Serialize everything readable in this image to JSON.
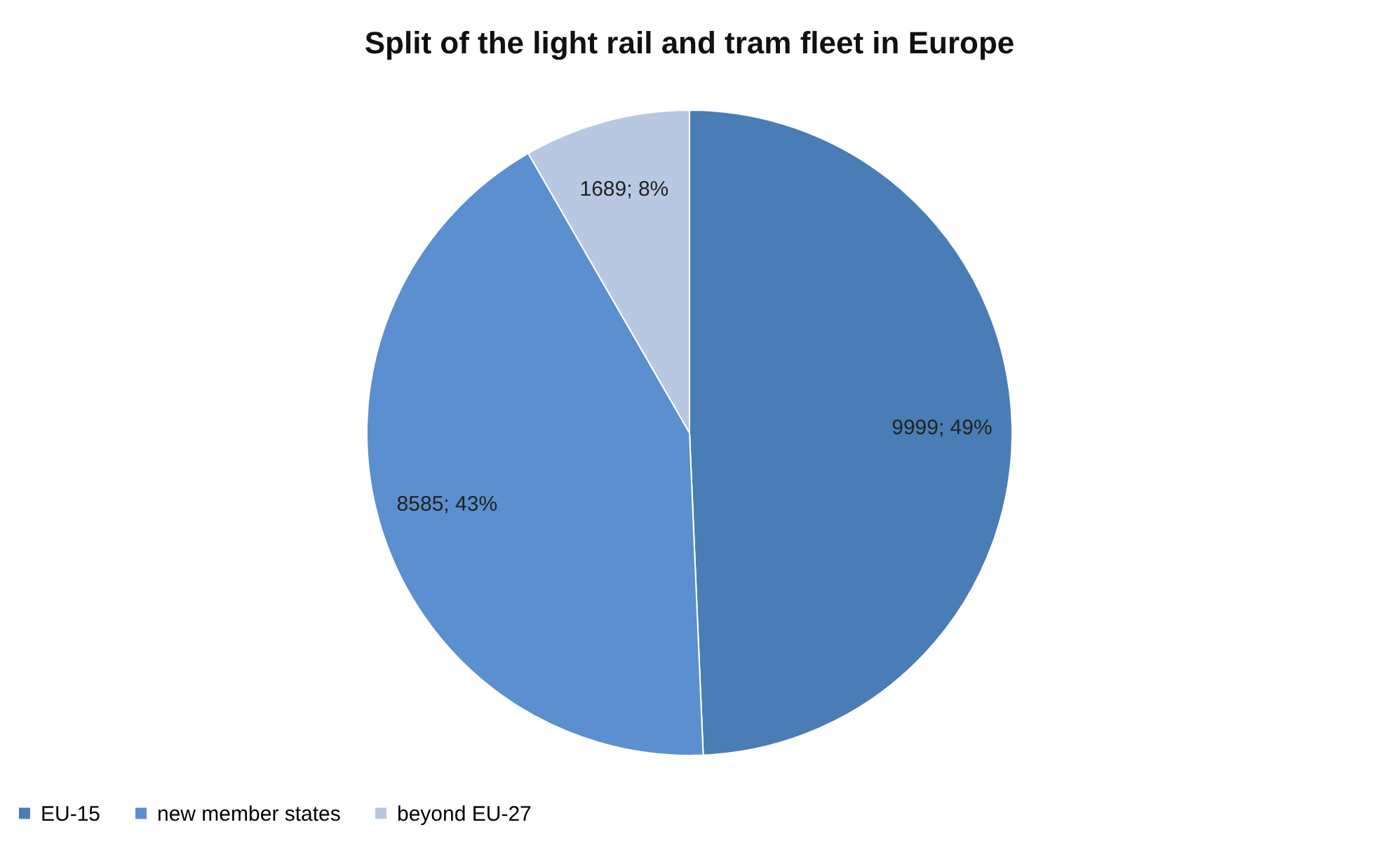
{
  "chart_data": {
    "type": "pie",
    "title": "Split of the light rail and tram fleet in Europe",
    "categories": [
      "EU-15",
      "new member states",
      "beyond EU-27"
    ],
    "values": [
      9999,
      8585,
      1689
    ],
    "value_labels": [
      "9999; 49%",
      "8585; 43%",
      "1689; 8%"
    ],
    "colors": [
      "#4a7db5",
      "#5b8fcf",
      "#b9c8e2"
    ],
    "legend": "bottom"
  }
}
